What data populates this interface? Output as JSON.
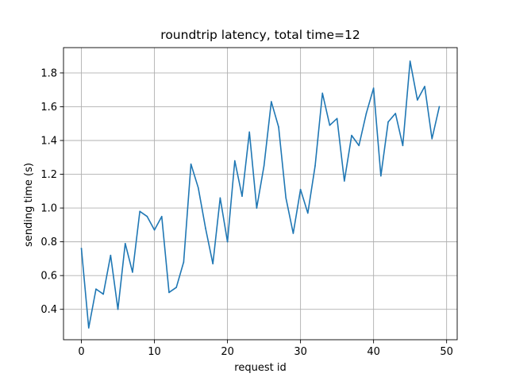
{
  "chart_data": {
    "type": "line",
    "title": "roundtrip latency, total time=12",
    "xlabel": "request id",
    "ylabel": "sending time (s)",
    "xlim": [
      -2.45,
      51.45
    ],
    "ylim": [
      0.22,
      1.95
    ],
    "xticks": [
      0,
      10,
      20,
      30,
      40,
      50
    ],
    "yticks": [
      0.4,
      0.6,
      0.8,
      1.0,
      1.2,
      1.4,
      1.6,
      1.8
    ],
    "ytick_labels": [
      "0.4",
      "0.6",
      "0.8",
      "1.0",
      "1.2",
      "1.4",
      "1.6",
      "1.8"
    ],
    "grid": true,
    "series": [
      {
        "color": "#1f77b4",
        "x": [
          0,
          1,
          2,
          3,
          4,
          5,
          6,
          7,
          8,
          9,
          10,
          11,
          12,
          13,
          14,
          15,
          16,
          17,
          18,
          19,
          20,
          21,
          22,
          23,
          24,
          25,
          26,
          27,
          28,
          29,
          30,
          31,
          32,
          33,
          34,
          35,
          36,
          37,
          38,
          39,
          40,
          41,
          42,
          43,
          44,
          45,
          46,
          47,
          48,
          49
        ],
        "values": [
          0.76,
          0.29,
          0.52,
          0.49,
          0.72,
          0.4,
          0.79,
          0.62,
          0.98,
          0.95,
          0.87,
          0.95,
          0.5,
          0.53,
          0.68,
          1.26,
          1.12,
          0.88,
          0.67,
          1.06,
          0.8,
          1.28,
          1.07,
          1.45,
          1.0,
          1.25,
          1.63,
          1.48,
          1.06,
          0.85,
          1.11,
          0.97,
          1.25,
          1.68,
          1.49,
          1.53,
          1.16,
          1.43,
          1.37,
          1.56,
          1.71,
          1.19,
          1.51,
          1.56,
          1.37,
          1.87,
          1.64,
          1.72,
          1.41,
          1.6
        ]
      }
    ]
  }
}
